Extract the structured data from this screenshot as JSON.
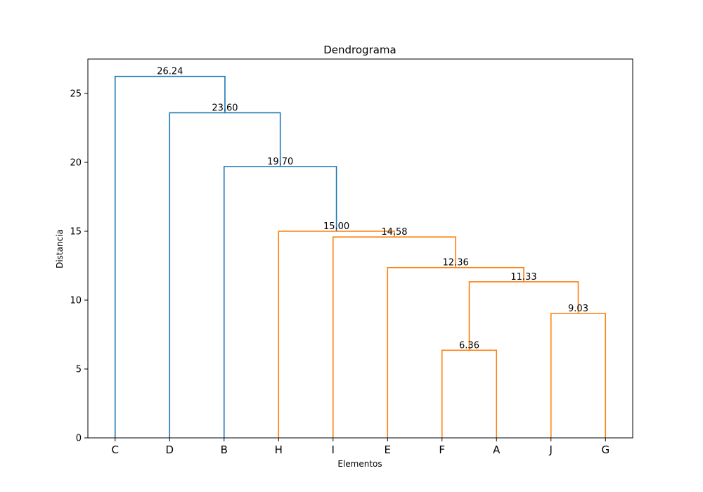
{
  "chart_data": {
    "type": "dendrogram",
    "title": "Dendrograma",
    "xlabel": "Elementos",
    "ylabel": "Distancia",
    "ylim": [
      0,
      27.5
    ],
    "yticks": [
      0,
      5,
      10,
      15,
      20,
      25
    ],
    "leaves": [
      "C",
      "D",
      "B",
      "H",
      "I",
      "E",
      "F",
      "A",
      "J",
      "G"
    ],
    "colors": {
      "above": "#1f77b4",
      "cluster": "#ff7f0e"
    },
    "merges": [
      {
        "id": "m1",
        "left": "F",
        "right": "A",
        "height": 6.36,
        "label": "6.36",
        "color": "cluster"
      },
      {
        "id": "m2",
        "left": "J",
        "right": "G",
        "height": 9.03,
        "label": "9.03",
        "color": "cluster"
      },
      {
        "id": "m3",
        "left": "m1",
        "right": "m2",
        "height": 11.33,
        "label": "11.33",
        "color": "cluster"
      },
      {
        "id": "m4",
        "left": "E",
        "right": "m3",
        "height": 12.36,
        "label": "12.36",
        "color": "cluster"
      },
      {
        "id": "m5",
        "left": "I",
        "right": "m4",
        "height": 14.58,
        "label": "14.58",
        "color": "cluster"
      },
      {
        "id": "m6",
        "left": "H",
        "right": "m5",
        "height": 15.0,
        "label": "15.00",
        "color": "cluster"
      },
      {
        "id": "m7",
        "left": "B",
        "right": "m6",
        "height": 19.7,
        "label": "19.70",
        "color": "above"
      },
      {
        "id": "m8",
        "left": "D",
        "right": "m7",
        "height": 23.6,
        "label": "23.60",
        "color": "above"
      },
      {
        "id": "m9",
        "left": "C",
        "right": "m8",
        "height": 26.24,
        "label": "26.24",
        "color": "above"
      }
    ]
  }
}
